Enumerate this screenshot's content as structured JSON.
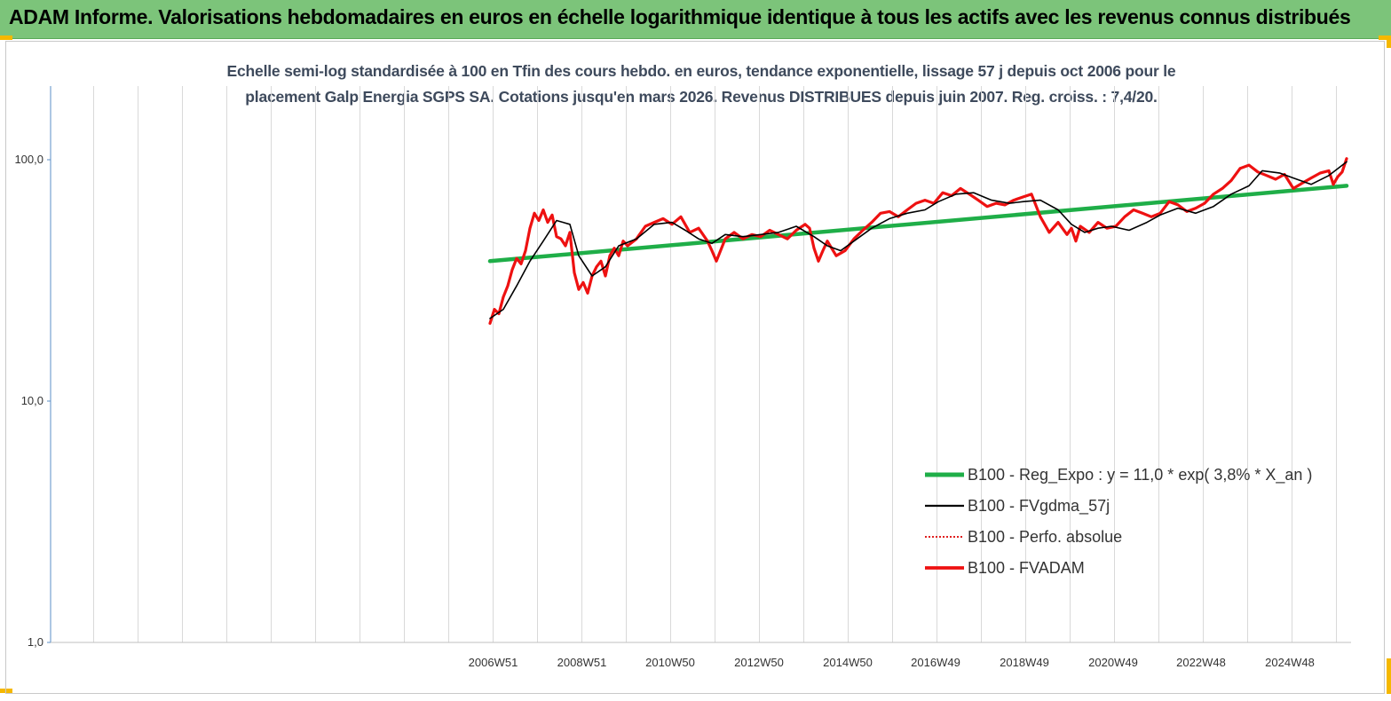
{
  "header": {
    "title": "ADAM Informe. Valorisations hebdomadaires en euros en échelle logarithmique identique à tous les actifs avec les revenus connus distribués",
    "background_color": "#7cc47a"
  },
  "chart_data": {
    "type": "line",
    "title_line1": "Echelle semi-log standardisée à 100 en Tfin des cours hebdo. en euros, tendance exponentielle, lissage 57 j depuis oct 2006 pour le",
    "title_line2": "placement Galp Energia SGPS SA. Cotations jusqu'en mars 2026. Revenus DISTRIBUES depuis juin 2007. Reg. croiss. : 7,4/20.",
    "y_scale": "log",
    "ylim": [
      1,
      200
    ],
    "y_ticks": [
      {
        "value": 1,
        "label": "1,0"
      },
      {
        "value": 10,
        "label": "10,0"
      },
      {
        "value": 100,
        "label": "100,0"
      }
    ],
    "xlim": [
      1997.0,
      2026.3
    ],
    "x_ticks": [
      {
        "value": 2006.97,
        "label": "2006W51"
      },
      {
        "value": 2008.97,
        "label": "2008W51"
      },
      {
        "value": 2010.96,
        "label": "2010W50"
      },
      {
        "value": 2012.96,
        "label": "2012W50"
      },
      {
        "value": 2014.96,
        "label": "2014W50"
      },
      {
        "value": 2016.94,
        "label": "2016W49"
      },
      {
        "value": 2018.94,
        "label": "2018W49"
      },
      {
        "value": 2020.94,
        "label": "2020W49"
      },
      {
        "value": 2022.92,
        "label": "2022W48"
      },
      {
        "value": 2024.92,
        "label": "2024W48"
      }
    ],
    "grid": "vertical",
    "legend_position": "bottom-right",
    "series": [
      {
        "name": "B100 - Reg_Expo : y = 11,0 * exp( 3,8% *  X_an )",
        "color": "#1fae48",
        "style": "thick",
        "x": [
          2006.9,
          2026.2
        ],
        "y": [
          38,
          78
        ]
      },
      {
        "name": "B100 - FVgdma_57j",
        "color": "#000000",
        "style": "thin",
        "x": [
          2006.9,
          2007.2,
          2007.5,
          2007.8,
          2008.1,
          2008.4,
          2008.7,
          2008.9,
          2009.2,
          2009.5,
          2009.8,
          2010.2,
          2010.6,
          2011.0,
          2011.3,
          2011.6,
          2011.9,
          2012.2,
          2012.6,
          2013.0,
          2013.4,
          2013.8,
          2014.2,
          2014.5,
          2014.8,
          2015.1,
          2015.5,
          2015.9,
          2016.3,
          2016.7,
          2017.0,
          2017.4,
          2017.8,
          2018.2,
          2018.6,
          2018.9,
          2019.3,
          2019.7,
          2020.0,
          2020.3,
          2020.6,
          2020.9,
          2021.3,
          2021.7,
          2022.0,
          2022.4,
          2022.8,
          2023.2,
          2023.6,
          2024.0,
          2024.3,
          2024.7,
          2025.0,
          2025.4,
          2025.8,
          2026.2
        ],
        "y": [
          22,
          24,
          30,
          38,
          46,
          56,
          54,
          40,
          33,
          36,
          44,
          47,
          54,
          55,
          51,
          47,
          45,
          49,
          48,
          49,
          50,
          53,
          48,
          44,
          42,
          46,
          52,
          57,
          60,
          62,
          67,
          72,
          73,
          68,
          66,
          67,
          68,
          62,
          54,
          50,
          52,
          53,
          51,
          55,
          59,
          63,
          60,
          64,
          72,
          78,
          90,
          88,
          84,
          79,
          86,
          98
        ]
      },
      {
        "name": "B100 - Perfo. absolue",
        "color": "#e02020",
        "style": "dotted",
        "x": [],
        "y": []
      },
      {
        "name": "B100 - FVADAM",
        "color": "#ee1111",
        "style": "thick",
        "x": [
          2006.9,
          2007.0,
          2007.1,
          2007.2,
          2007.3,
          2007.4,
          2007.5,
          2007.6,
          2007.7,
          2007.8,
          2007.9,
          2008.0,
          2008.1,
          2008.2,
          2008.3,
          2008.4,
          2008.5,
          2008.6,
          2008.7,
          2008.8,
          2008.9,
          2009.0,
          2009.1,
          2009.2,
          2009.3,
          2009.4,
          2009.5,
          2009.6,
          2009.7,
          2009.8,
          2009.9,
          2010.0,
          2010.2,
          2010.4,
          2010.6,
          2010.8,
          2011.0,
          2011.2,
          2011.4,
          2011.6,
          2011.8,
          2011.9,
          2012.0,
          2012.2,
          2012.4,
          2012.6,
          2012.8,
          2013.0,
          2013.2,
          2013.4,
          2013.6,
          2013.8,
          2014.0,
          2014.1,
          2014.2,
          2014.3,
          2014.4,
          2014.5,
          2014.7,
          2014.9,
          2015.1,
          2015.3,
          2015.5,
          2015.7,
          2015.9,
          2016.1,
          2016.3,
          2016.5,
          2016.7,
          2016.9,
          2017.1,
          2017.3,
          2017.5,
          2017.7,
          2017.9,
          2018.1,
          2018.3,
          2018.5,
          2018.7,
          2018.9,
          2019.1,
          2019.3,
          2019.5,
          2019.7,
          2019.9,
          2020.0,
          2020.1,
          2020.2,
          2020.4,
          2020.6,
          2020.8,
          2021.0,
          2021.2,
          2021.4,
          2021.6,
          2021.8,
          2022.0,
          2022.2,
          2022.4,
          2022.6,
          2022.8,
          2023.0,
          2023.2,
          2023.4,
          2023.6,
          2023.8,
          2024.0,
          2024.2,
          2024.4,
          2024.6,
          2024.8,
          2025.0,
          2025.2,
          2025.4,
          2025.6,
          2025.8,
          2025.9,
          2026.0,
          2026.1,
          2026.2
        ],
        "y": [
          21,
          24,
          23,
          27,
          30,
          35,
          39,
          37,
          42,
          52,
          60,
          56,
          62,
          55,
          59,
          48,
          47,
          44,
          50,
          34,
          29,
          31,
          28,
          33,
          36,
          38,
          33,
          40,
          43,
          40,
          46,
          44,
          47,
          53,
          55,
          57,
          54,
          58,
          50,
          52,
          46,
          42,
          38,
          47,
          50,
          47,
          49,
          48,
          51,
          49,
          47,
          51,
          54,
          52,
          43,
          38,
          42,
          46,
          40,
          42,
          47,
          51,
          55,
          60,
          61,
          58,
          62,
          66,
          68,
          66,
          73,
          71,
          76,
          72,
          68,
          64,
          66,
          65,
          68,
          70,
          72,
          58,
          50,
          55,
          49,
          52,
          46,
          53,
          50,
          55,
          52,
          53,
          58,
          62,
          60,
          58,
          60,
          67,
          65,
          61,
          63,
          66,
          72,
          76,
          82,
          92,
          95,
          89,
          86,
          83,
          87,
          76,
          80,
          84,
          88,
          90,
          79,
          85,
          89,
          101
        ]
      }
    ]
  }
}
